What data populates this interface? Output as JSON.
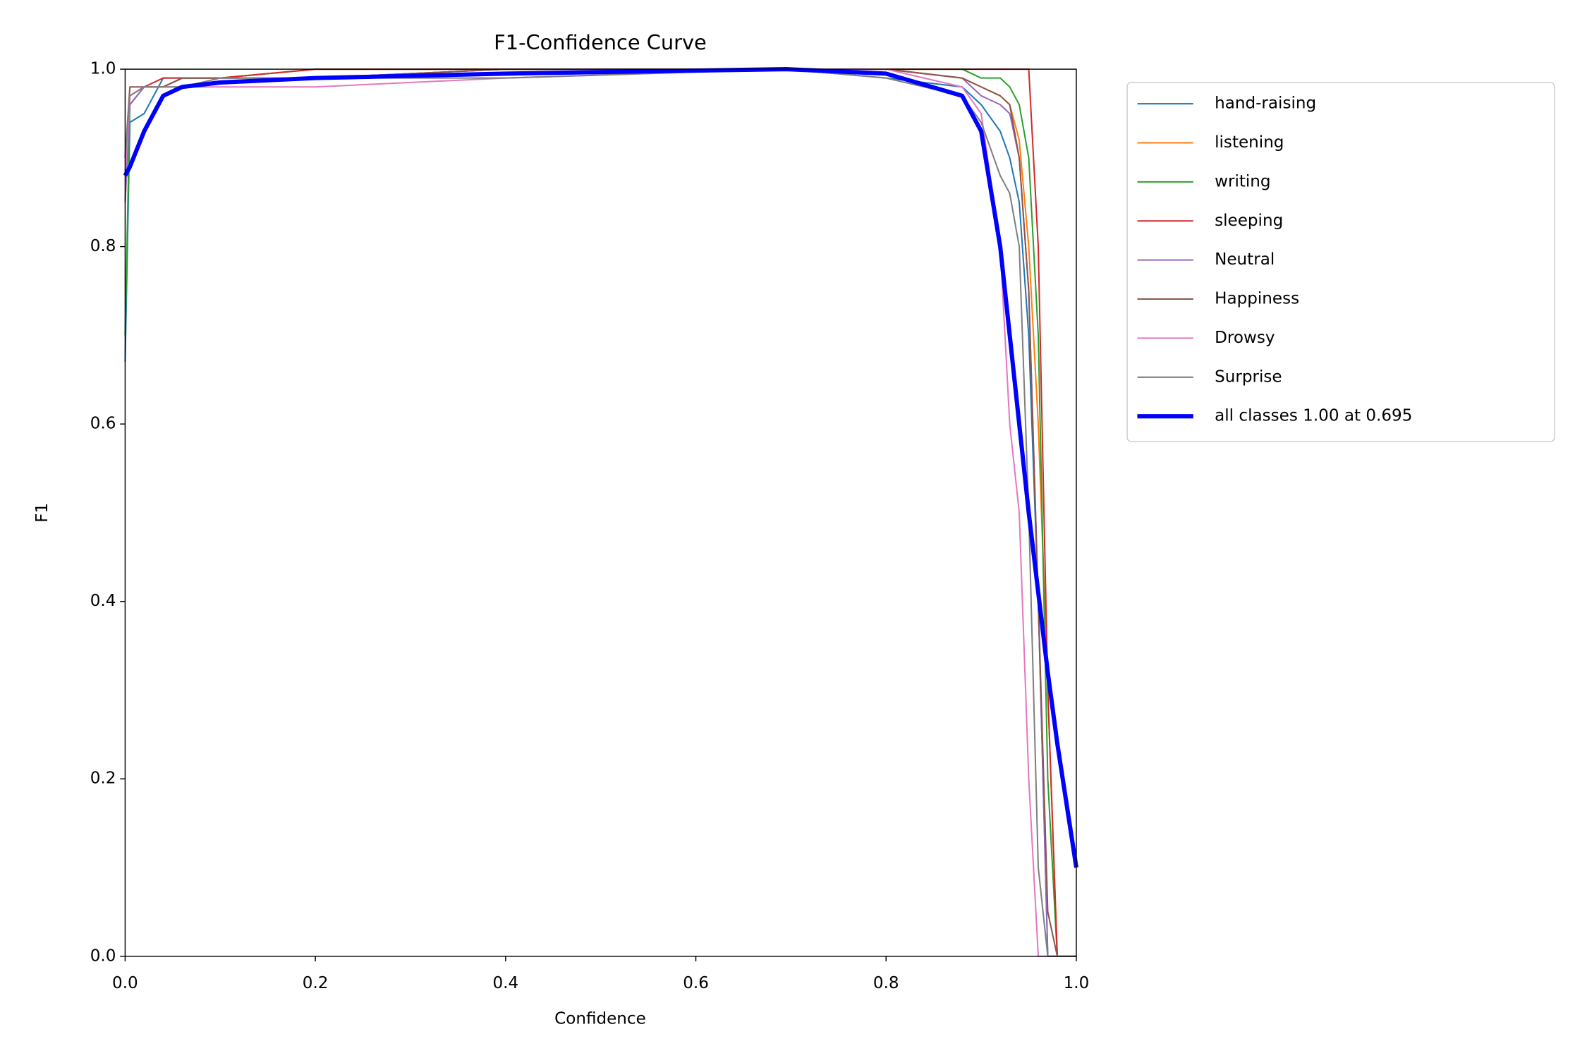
{
  "chart_data": {
    "type": "line",
    "title": "F1-Confidence Curve",
    "xlabel": "Confidence",
    "ylabel": "F1",
    "x": [
      0,
      0.005,
      0.02,
      0.04,
      0.06,
      0.1,
      0.2,
      0.4,
      0.695,
      0.8,
      0.88,
      0.9,
      0.92,
      0.93,
      0.94,
      0.95,
      0.96,
      0.97,
      0.98,
      1.0
    ],
    "series": [
      {
        "name": "hand-raising",
        "color": "#1f77b4",
        "linewidth": 1,
        "values": [
          0.67,
          0.94,
          0.95,
          0.99,
          0.99,
          0.99,
          0.99,
          1.0,
          1.0,
          0.99,
          0.98,
          0.96,
          0.93,
          0.9,
          0.85,
          0.7,
          0.4,
          0.0,
          0.0,
          0.0
        ]
      },
      {
        "name": "listening",
        "color": "#ff7f0e",
        "linewidth": 1,
        "values": [
          0.85,
          0.96,
          0.98,
          0.98,
          0.99,
          0.99,
          1.0,
          1.0,
          1.0,
          1.0,
          0.99,
          0.98,
          0.97,
          0.96,
          0.92,
          0.8,
          0.6,
          0.3,
          0.0,
          0.0
        ]
      },
      {
        "name": "writing",
        "color": "#2ca02c",
        "linewidth": 1,
        "values": [
          0.7,
          0.96,
          0.98,
          0.98,
          0.99,
          0.99,
          1.0,
          1.0,
          1.0,
          1.0,
          1.0,
          0.99,
          0.99,
          0.98,
          0.96,
          0.9,
          0.7,
          0.2,
          0.0,
          0.0
        ]
      },
      {
        "name": "sleeping",
        "color": "#d62728",
        "linewidth": 1,
        "values": [
          0.9,
          0.97,
          0.98,
          0.99,
          0.99,
          0.99,
          1.0,
          1.0,
          1.0,
          1.0,
          1.0,
          1.0,
          1.0,
          1.0,
          1.0,
          1.0,
          0.8,
          0.3,
          0.0,
          0.0
        ]
      },
      {
        "name": "Neutral",
        "color": "#9467bd",
        "linewidth": 1,
        "values": [
          0.85,
          0.96,
          0.98,
          0.98,
          0.99,
          0.99,
          0.99,
          1.0,
          1.0,
          1.0,
          0.99,
          0.97,
          0.96,
          0.95,
          0.9,
          0.75,
          0.4,
          0.0,
          0.0,
          0.0
        ]
      },
      {
        "name": "Happiness",
        "color": "#8c564b",
        "linewidth": 1,
        "values": [
          0.9,
          0.98,
          0.98,
          0.98,
          0.99,
          0.99,
          0.99,
          1.0,
          1.0,
          1.0,
          0.99,
          0.98,
          0.97,
          0.96,
          0.9,
          0.75,
          0.4,
          0.05,
          0.0,
          0.0
        ]
      },
      {
        "name": "Drowsy",
        "color": "#e377c2",
        "linewidth": 1,
        "values": [
          0.88,
          0.97,
          0.98,
          0.98,
          0.98,
          0.98,
          0.98,
          0.99,
          1.0,
          1.0,
          0.98,
          0.95,
          0.8,
          0.6,
          0.5,
          0.2,
          0.0,
          0.0,
          0.0,
          0.0
        ]
      },
      {
        "name": "Surprise",
        "color": "#7f7f7f",
        "linewidth": 1,
        "values": [
          0.9,
          0.97,
          0.98,
          0.98,
          0.98,
          0.99,
          0.99,
          0.99,
          1.0,
          0.99,
          0.97,
          0.94,
          0.88,
          0.86,
          0.8,
          0.5,
          0.1,
          0.0,
          0.0,
          0.0
        ]
      },
      {
        "name": "all classes 1.00 at 0.695",
        "color": "#0000ff",
        "linewidth": 3,
        "values": [
          0.88,
          0.89,
          0.93,
          0.97,
          0.98,
          0.985,
          0.99,
          0.995,
          1.0,
          0.995,
          0.97,
          0.93,
          0.8,
          0.7,
          0.6,
          0.5,
          0.41,
          0.32,
          0.24,
          0.1
        ]
      }
    ],
    "xlim": [
      0,
      1
    ],
    "ylim": [
      0,
      1
    ],
    "xticks": [
      {
        "value": 0,
        "label": "0.0"
      },
      0.2,
      0.4,
      0.6,
      0.8,
      {
        "value": 1,
        "label": "1.0"
      }
    ],
    "yticks": [
      {
        "value": 0,
        "label": "0.0"
      },
      0.2,
      0.4,
      0.6,
      0.8,
      {
        "value": 1,
        "label": "1.0"
      }
    ],
    "legend": "outside-upper-right"
  }
}
